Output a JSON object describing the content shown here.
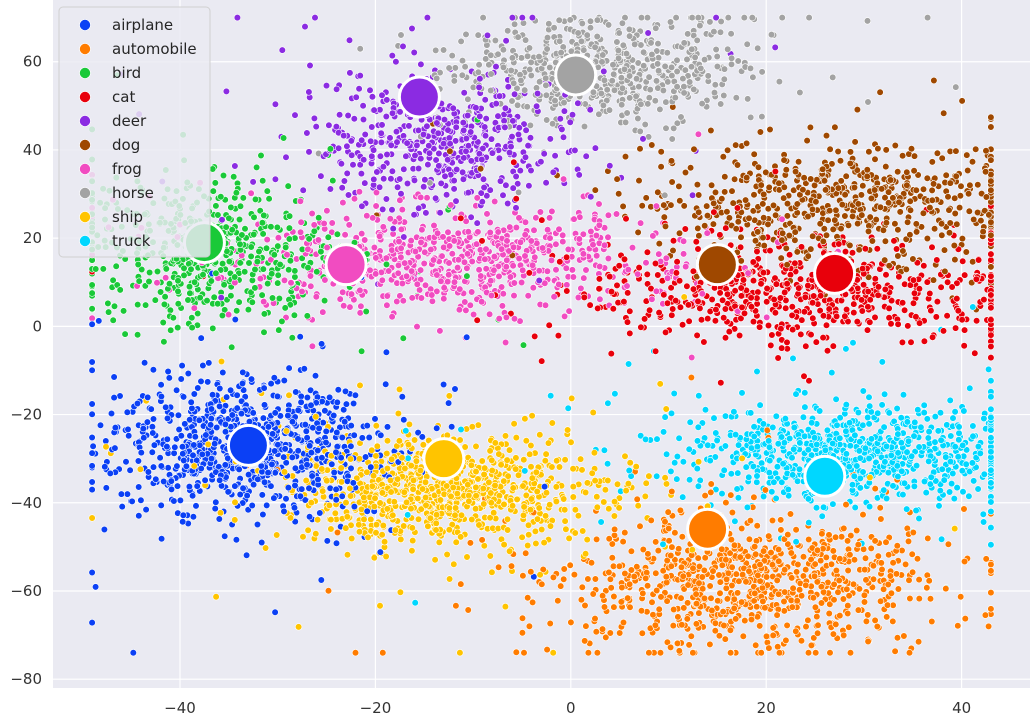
{
  "chart_data": {
    "type": "scatter",
    "title": "",
    "xlabel": "",
    "ylabel": "",
    "xlim": [
      -53,
      47
    ],
    "ylim": [
      -82,
      74
    ],
    "xticks": [
      -40,
      -20,
      0,
      20,
      40
    ],
    "yticks": [
      -80,
      -60,
      -40,
      -20,
      0,
      20,
      40,
      60
    ],
    "xtick_labels": [
      "−40",
      "−20",
      "0",
      "20",
      "40"
    ],
    "ytick_labels": [
      "−80",
      "−60",
      "−40",
      "−20",
      "0",
      "20",
      "40",
      "60"
    ],
    "grid": true,
    "background": "#eaeaf2",
    "legend_position": "top-left",
    "series": [
      {
        "name": "airplane",
        "color": "#0b40f5",
        "centroid": [
          -33,
          -27
        ],
        "spread": [
          6.5,
          7.5
        ],
        "count": 900
      },
      {
        "name": "automobile",
        "color": "#ff7c00",
        "centroid": [
          18,
          -58
        ],
        "spread": [
          9,
          7.5
        ],
        "count": 900
      },
      {
        "name": "bird",
        "color": "#1ac938",
        "centroid": [
          -37,
          17
        ],
        "spread": [
          6.5,
          8
        ],
        "count": 550
      },
      {
        "name": "cat",
        "color": "#e8000b",
        "centroid": [
          23,
          8
        ],
        "spread": [
          11,
          5.5
        ],
        "count": 650
      },
      {
        "name": "deer",
        "color": "#8b2be2",
        "centroid": [
          -13,
          42
        ],
        "spread": [
          6.5,
          8
        ],
        "count": 550
      },
      {
        "name": "dog",
        "color": "#9f4800",
        "centroid": [
          28,
          28
        ],
        "spread": [
          10,
          7
        ],
        "count": 650
      },
      {
        "name": "frog",
        "color": "#f14cc1",
        "centroid": [
          -12,
          15
        ],
        "spread": [
          11,
          5.5
        ],
        "count": 750
      },
      {
        "name": "horse",
        "color": "#a3a3a3",
        "centroid": [
          3,
          58
        ],
        "spread": [
          7,
          6
        ],
        "count": 600
      },
      {
        "name": "ship",
        "color": "#ffc400",
        "centroid": [
          -13,
          -37
        ],
        "spread": [
          8,
          6
        ],
        "count": 900
      },
      {
        "name": "truck",
        "color": "#00d7ff",
        "centroid": [
          29,
          -29
        ],
        "spread": [
          9,
          5.5
        ],
        "count": 850
      }
    ],
    "centroid_markers": [
      {
        "name": "airplane",
        "x": -33,
        "y": -27
      },
      {
        "name": "automobile",
        "x": 14,
        "y": -46
      },
      {
        "name": "bird",
        "x": -37.5,
        "y": 19
      },
      {
        "name": "cat",
        "x": 27,
        "y": 12
      },
      {
        "name": "deer",
        "x": -15.5,
        "y": 52
      },
      {
        "name": "dog",
        "x": 15,
        "y": 14
      },
      {
        "name": "frog",
        "x": -23,
        "y": 14
      },
      {
        "name": "horse",
        "x": 0.5,
        "y": 57
      },
      {
        "name": "ship",
        "x": -13,
        "y": -30
      },
      {
        "name": "truck",
        "x": 26,
        "y": -34
      }
    ]
  }
}
